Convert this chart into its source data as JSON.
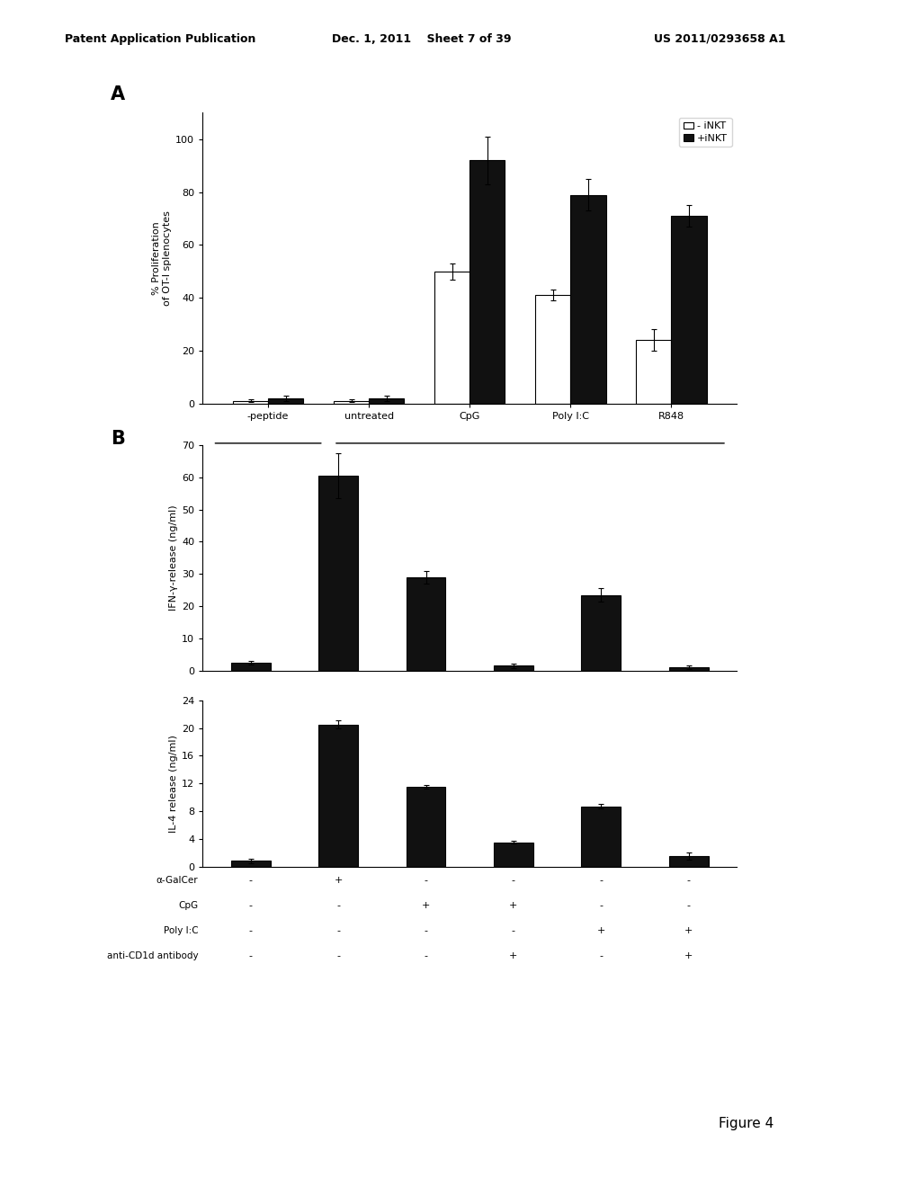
{
  "header_left": "Patent Application Publication",
  "header_mid": "Dec. 1, 2011    Sheet 7 of 39",
  "header_right": "US 2011/0293658 A1",
  "figure_label": "Figure 4",
  "panel_A": {
    "label": "A",
    "categories": [
      "-peptide",
      "untreated",
      "CpG",
      "Poly I:C",
      "R848"
    ],
    "minus_iNKT": [
      1,
      1,
      50,
      41,
      24
    ],
    "plus_iNKT": [
      2,
      2,
      92,
      79,
      71
    ],
    "minus_iNKT_err": [
      0.5,
      0.5,
      3,
      2,
      4
    ],
    "plus_iNKT_err": [
      1,
      1,
      9,
      6,
      4
    ],
    "ylabel": "% Proliferation\nof OT-I splenocytes",
    "ylim": [
      0,
      110
    ],
    "yticks": [
      0,
      20,
      40,
      60,
      80,
      100
    ],
    "legend_minus": "- iNKT",
    "legend_plus": "+iNKT"
  },
  "panel_B_IFN": {
    "label": "B",
    "values": [
      2.5,
      60.5,
      29,
      1.5,
      23.5,
      1.0
    ],
    "errors": [
      0.5,
      7,
      2,
      0.8,
      2,
      0.5
    ],
    "ylabel": "IFN-γ-release (ng/ml)",
    "ylim": [
      0,
      70
    ],
    "yticks": [
      0,
      10,
      20,
      30,
      40,
      50,
      60,
      70
    ]
  },
  "panel_B_IL4": {
    "values": [
      0.8,
      20.5,
      11.5,
      3.5,
      8.7,
      1.5
    ],
    "errors": [
      0.3,
      0.6,
      0.3,
      0.2,
      0.3,
      0.5
    ],
    "ylabel": "IL-4 release (ng/ml)",
    "ylim": [
      0,
      24
    ],
    "yticks": [
      0,
      4,
      8,
      12,
      16,
      20,
      24
    ]
  },
  "table_rows": [
    "α-GalCer",
    "CpG",
    "Poly I:C",
    "anti-CD1d antibody"
  ],
  "table_data": [
    [
      "-",
      "+",
      "-",
      "-",
      "-",
      "-"
    ],
    [
      "-",
      "-",
      "+",
      "+",
      "-",
      "-"
    ],
    [
      "-",
      "-",
      "-",
      "-",
      "+",
      "+"
    ],
    [
      "-",
      "-",
      "-",
      "+",
      "-",
      "+"
    ]
  ],
  "bar_color_white": "#ffffff",
  "bar_color_black": "#111111",
  "bar_edgecolor": "#000000",
  "background_color": "#ffffff",
  "text_color": "#000000"
}
